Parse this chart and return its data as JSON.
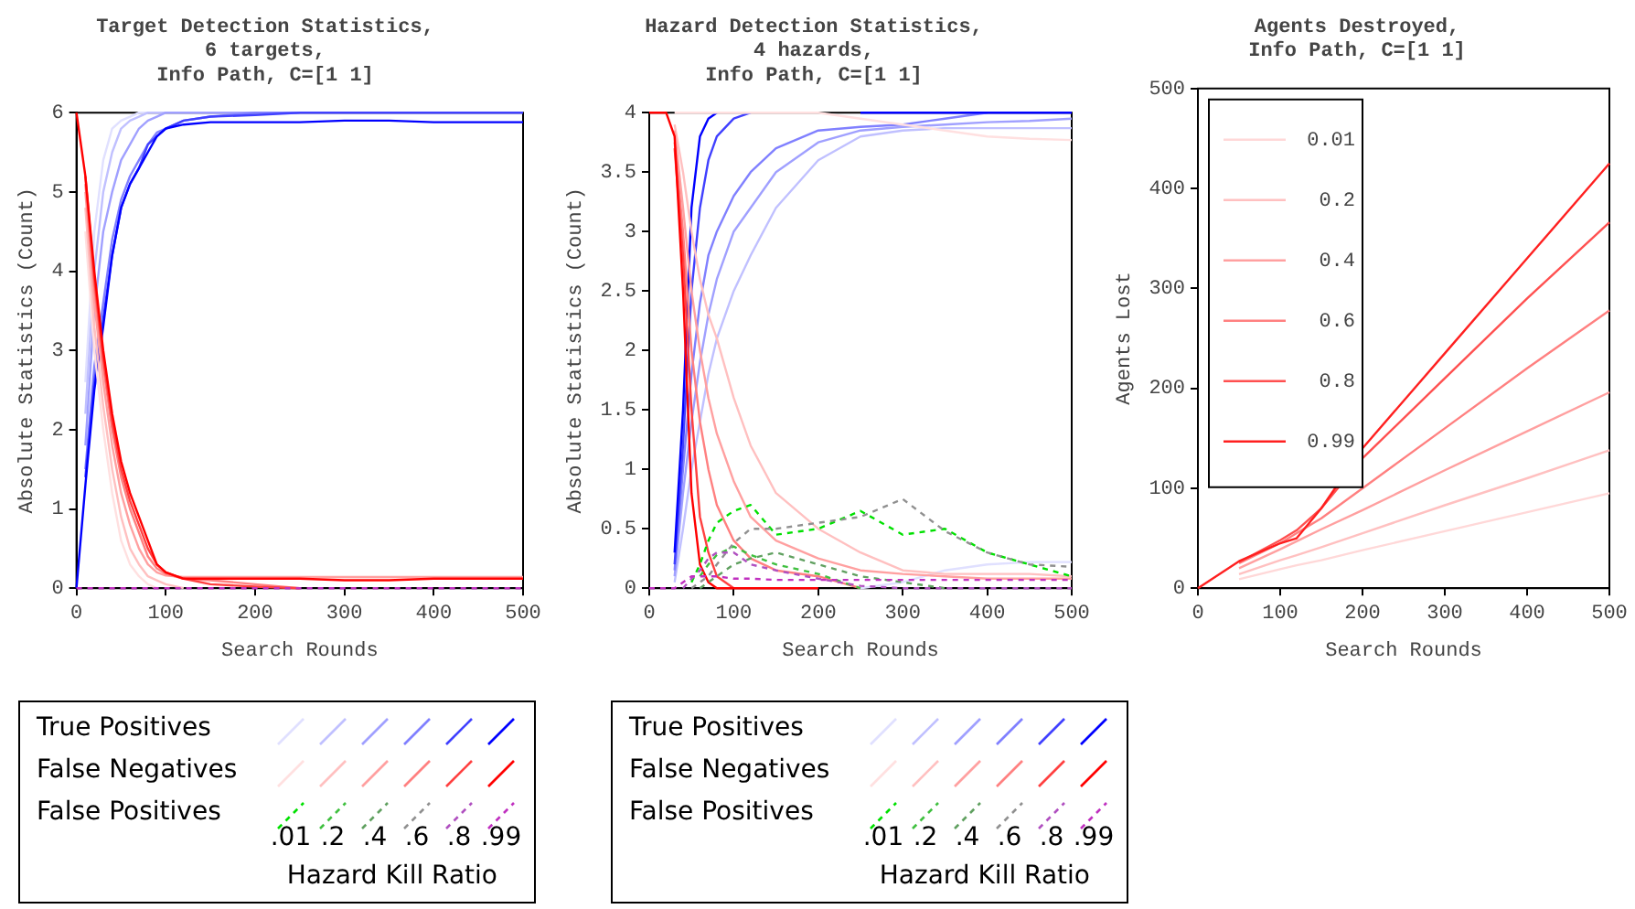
{
  "chart_data": [
    {
      "type": "line",
      "title": "Target Detection Statistics,\n6 targets,\nInfo Path, C=[1 1]",
      "xlabel": "Search Rounds",
      "ylabel": "Absolute Statistics (Count)",
      "xlim": [
        0,
        500
      ],
      "ylim": [
        0,
        6
      ],
      "xticks": [
        0,
        100,
        200,
        300,
        400,
        500
      ],
      "yticks": [
        0,
        1,
        2,
        3,
        4,
        5,
        6
      ],
      "grid": false,
      "marker": "none",
      "x": [
        0,
        10,
        20,
        30,
        40,
        50,
        60,
        70,
        80,
        90,
        100,
        120,
        150,
        200,
        250,
        300,
        350,
        400,
        450,
        500
      ],
      "series": [
        {
          "color": "#e0e0ff",
          "values": [
            null,
            2.6,
            4.5,
            5.4,
            5.8,
            5.9,
            5.95,
            6,
            6,
            null,
            null,
            null,
            null,
            null,
            null,
            null,
            null,
            null,
            null,
            null
          ]
        },
        {
          "color": "#c0c0ff",
          "values": [
            null,
            2.2,
            4,
            5,
            5.5,
            5.8,
            5.9,
            5.95,
            6,
            6,
            6,
            null,
            null,
            null,
            null,
            null,
            null,
            null,
            null,
            null
          ]
        },
        {
          "color": "#a0a0ff",
          "values": [
            null,
            1.8,
            3.5,
            4.5,
            5,
            5.4,
            5.6,
            5.8,
            5.9,
            5.95,
            6,
            6,
            6,
            6,
            null,
            null,
            null,
            null,
            null,
            null
          ]
        },
        {
          "color": "#8080ff",
          "values": [
            null,
            1.5,
            2.8,
            3.6,
            4.4,
            4.9,
            5.2,
            5.4,
            5.6,
            5.75,
            5.8,
            5.9,
            5.95,
            6,
            6,
            null,
            null,
            null,
            null,
            null
          ]
        },
        {
          "color": "#4040ff",
          "values": [
            null,
            1.4,
            2.6,
            3.4,
            4.2,
            4.8,
            5.1,
            5.3,
            5.6,
            5.7,
            5.8,
            5.9,
            5.95,
            5.97,
            6,
            6,
            6,
            6,
            6,
            6
          ]
        },
        {
          "color": "#0000ff",
          "values": [
            0,
            1.3,
            2.5,
            3.3,
            4.2,
            4.8,
            5.1,
            5.3,
            5.5,
            5.7,
            5.8,
            5.85,
            5.88,
            5.88,
            5.88,
            5.9,
            5.9,
            5.88,
            5.88,
            5.88
          ]
        },
        {
          "color": "#ffe0e0",
          "values": [
            null,
            4.5,
            3,
            2,
            1.2,
            0.6,
            0.3,
            0.15,
            0.05,
            0,
            null,
            null,
            null,
            null,
            null,
            null,
            null,
            null,
            null,
            null
          ]
        },
        {
          "color": "#ffc0c0",
          "values": [
            null,
            4.8,
            3.3,
            2.3,
            1.5,
            0.9,
            0.5,
            0.3,
            0.15,
            0.1,
            0.05,
            0,
            null,
            null,
            null,
            null,
            null,
            null,
            null,
            null
          ]
        },
        {
          "color": "#ffa0a0",
          "values": [
            null,
            5,
            3.6,
            2.6,
            1.8,
            1.2,
            0.8,
            0.5,
            0.3,
            0.2,
            0.16,
            0.14,
            0.14,
            0.14,
            0.14,
            0.14,
            0.14,
            0.14,
            0.14,
            0.14
          ]
        },
        {
          "color": "#ff8080",
          "values": [
            null,
            5.1,
            3.8,
            2.8,
            2,
            1.4,
            1,
            0.7,
            0.4,
            0.25,
            0.18,
            0.12,
            0.1,
            0.05,
            0,
            null,
            null,
            null,
            null,
            null
          ]
        },
        {
          "color": "#ff4040",
          "values": [
            null,
            5.2,
            3.9,
            2.9,
            2.1,
            1.5,
            1.1,
            0.8,
            0.5,
            0.3,
            0.2,
            0.12,
            0.05,
            0.02,
            0,
            null,
            null,
            null,
            null,
            null
          ]
        },
        {
          "color": "#ff0000",
          "values": [
            6,
            5.2,
            4,
            3,
            2.2,
            1.6,
            1.2,
            0.9,
            0.6,
            0.3,
            0.2,
            0.12,
            0.12,
            0.12,
            0.12,
            0.1,
            0.1,
            0.12,
            0.12,
            0.12
          ]
        },
        {
          "color": "#00e000",
          "line_style": "dashed",
          "values": [
            null,
            null,
            null,
            null,
            null,
            null,
            null,
            null,
            null,
            null,
            null,
            null,
            null,
            null,
            null,
            null,
            null,
            null,
            null,
            null
          ]
        },
        {
          "color": "#40c040",
          "line_style": "dashed",
          "values": [
            null,
            null,
            null,
            null,
            null,
            null,
            null,
            null,
            null,
            null,
            null,
            null,
            null,
            null,
            null,
            null,
            null,
            null,
            null,
            null
          ]
        },
        {
          "color": "#60a060",
          "line_style": "dashed",
          "values": [
            null,
            null,
            null,
            null,
            null,
            null,
            null,
            null,
            null,
            null,
            null,
            null,
            null,
            null,
            null,
            null,
            null,
            null,
            null,
            null
          ]
        },
        {
          "color": "#909090",
          "line_style": "dashed",
          "values": [
            null,
            null,
            null,
            null,
            null,
            null,
            null,
            null,
            null,
            null,
            null,
            null,
            null,
            null,
            null,
            null,
            null,
            null,
            null,
            null
          ]
        },
        {
          "color": "#b050c0",
          "line_style": "dashed",
          "values": [
            null,
            null,
            null,
            null,
            null,
            null,
            null,
            null,
            null,
            null,
            null,
            null,
            null,
            null,
            null,
            null,
            null,
            null,
            null,
            null
          ]
        },
        {
          "color": "#c030c0",
          "line_style": "dashed",
          "values": [
            0,
            0,
            0,
            0,
            0,
            0,
            0,
            0,
            0,
            0,
            0,
            0,
            0,
            0,
            0,
            0,
            0,
            0,
            0,
            0
          ]
        }
      ],
      "annotations": [
        "True Positives",
        "False Negatives",
        "False Positives",
        ".01",
        ".2",
        ".4",
        ".6",
        ".8",
        ".99",
        "Hazard Kill Ratio"
      ]
    },
    {
      "type": "line",
      "title": "Hazard Detection Statistics,\n4 hazards,\nInfo Path, C=[1 1]",
      "xlabel": "Search Rounds",
      "ylabel": "Absolute Statistics (Count)",
      "xlim": [
        0,
        500
      ],
      "ylim": [
        0,
        4
      ],
      "xticks": [
        0,
        100,
        200,
        300,
        400,
        500
      ],
      "yticks": [
        0,
        0.5,
        1,
        1.5,
        2,
        2.5,
        3,
        3.5,
        4
      ],
      "grid": false,
      "marker": "none",
      "x": [
        0,
        20,
        30,
        40,
        50,
        60,
        70,
        80,
        100,
        120,
        150,
        200,
        250,
        300,
        350,
        400,
        450,
        500
      ],
      "series": [
        {
          "color": "#e0e0ff",
          "values": [
            null,
            null,
            null,
            null,
            null,
            null,
            null,
            null,
            null,
            null,
            null,
            null,
            0,
            0.05,
            0.15,
            0.2,
            0.22,
            0.22
          ]
        },
        {
          "color": "#c0c0ff",
          "values": [
            null,
            null,
            0.05,
            0.5,
            1,
            1.4,
            1.8,
            2.1,
            2.5,
            2.8,
            3.2,
            3.6,
            3.8,
            3.85,
            3.87,
            3.87,
            3.87,
            3.87
          ]
        },
        {
          "color": "#a0a0ff",
          "values": [
            null,
            null,
            0.1,
            0.8,
            1.4,
            1.9,
            2.3,
            2.6,
            3,
            3.2,
            3.5,
            3.75,
            3.85,
            3.88,
            3.9,
            3.92,
            3.93,
            3.95
          ]
        },
        {
          "color": "#8080ff",
          "values": [
            null,
            null,
            0.15,
            1,
            1.8,
            2.4,
            2.8,
            3,
            3.3,
            3.5,
            3.7,
            3.85,
            3.88,
            3.9,
            3.95,
            4,
            null,
            null
          ]
        },
        {
          "color": "#4040ff",
          "values": [
            null,
            null,
            0.2,
            1.2,
            2.5,
            3.2,
            3.6,
            3.8,
            3.95,
            4,
            null,
            null,
            null,
            null,
            null,
            null,
            null,
            null
          ]
        },
        {
          "color": "#0000ff",
          "values": [
            null,
            null,
            0.3,
            1.5,
            3.2,
            3.8,
            3.95,
            4,
            null,
            null,
            null,
            null,
            4,
            4,
            4,
            4,
            4,
            4
          ]
        },
        {
          "color": "#ffe0e0",
          "values": [
            null,
            null,
            4,
            4,
            4,
            4,
            4,
            4,
            4,
            4,
            4,
            4,
            3.95,
            3.9,
            3.85,
            3.8,
            3.78,
            3.77
          ]
        },
        {
          "color": "#ffc0c0",
          "values": [
            null,
            null,
            3.9,
            3.5,
            3,
            2.6,
            2.3,
            2.1,
            1.6,
            1.2,
            0.8,
            0.5,
            0.3,
            0.15,
            0.12,
            0.12,
            0.12,
            0.1
          ]
        },
        {
          "color": "#ffa0a0",
          "values": [
            null,
            null,
            3.85,
            3.2,
            2.5,
            2,
            1.6,
            1.3,
            0.9,
            0.6,
            0.4,
            0.25,
            0.15,
            0.12,
            0.1,
            0.08,
            0.08,
            0.08
          ]
        },
        {
          "color": "#ff8080",
          "values": [
            null,
            null,
            3.75,
            3,
            2,
            1.4,
            1,
            0.7,
            0.4,
            0.25,
            0.15,
            0.1,
            0,
            null,
            null,
            null,
            null,
            null
          ]
        },
        {
          "color": "#ff4040",
          "values": [
            null,
            null,
            3.7,
            2.8,
            1.5,
            0.6,
            0.3,
            0.1,
            0,
            null,
            null,
            null,
            null,
            null,
            null,
            null,
            null,
            null
          ]
        },
        {
          "color": "#ff0000",
          "values": [
            4,
            4,
            3.8,
            2.5,
            0.8,
            0.2,
            0.05,
            0,
            0,
            0,
            0,
            0,
            null,
            null,
            null,
            null,
            null,
            null
          ]
        },
        {
          "color": "#00e000",
          "line_style": "dashed",
          "values": [
            null,
            null,
            null,
            null,
            0.05,
            0.2,
            0.4,
            0.55,
            0.65,
            0.7,
            0.45,
            0.5,
            0.65,
            0.45,
            0.5,
            0.3,
            0.2,
            0.1
          ]
        },
        {
          "color": "#40c040",
          "line_style": "dashed",
          "values": [
            null,
            null,
            null,
            null,
            null,
            0.1,
            0.2,
            0.28,
            0.35,
            0.28,
            0.2,
            0.12,
            0,
            null,
            null,
            null,
            null,
            null
          ]
        },
        {
          "color": "#60a060",
          "line_style": "dashed",
          "values": [
            null,
            null,
            null,
            null,
            null,
            0,
            0.05,
            0.1,
            0.2,
            0.25,
            0.3,
            0.2,
            0.1,
            0.05,
            0,
            null,
            null,
            null
          ]
        },
        {
          "color": "#909090",
          "line_style": "dashed",
          "values": [
            null,
            null,
            null,
            null,
            0,
            0.05,
            0.1,
            0.2,
            0.38,
            0.5,
            0.5,
            0.55,
            0.6,
            0.75,
            0.48,
            0.3,
            0.2,
            0.18
          ]
        },
        {
          "color": "#b050c0",
          "line_style": "dashed",
          "values": [
            null,
            null,
            null,
            0,
            0.08,
            0.15,
            0.25,
            0.3,
            0.3,
            0.2,
            0.15,
            0.08,
            0.02,
            0,
            0,
            0,
            0,
            0
          ]
        },
        {
          "color": "#c030c0",
          "line_style": "dashed",
          "values": [
            0,
            0,
            0,
            0.05,
            0.1,
            0.1,
            0.1,
            0.1,
            0.08,
            0.08,
            0.07,
            0.07,
            0.07,
            0.07,
            0.07,
            0.07,
            0.07,
            0.07
          ]
        }
      ],
      "annotations": [
        "True Positives",
        "False Negatives",
        "False Positives",
        ".01",
        ".2",
        ".4",
        ".6",
        ".8",
        ".99",
        "Hazard Kill Ratio"
      ]
    },
    {
      "type": "line",
      "title": "Agents Destroyed,\nInfo Path, C=[1 1]",
      "xlabel": "Search Rounds",
      "ylabel": "Agents Lost",
      "xlim": [
        0,
        500
      ],
      "ylim": [
        0,
        500
      ],
      "xticks": [
        0,
        100,
        200,
        300,
        400,
        500
      ],
      "yticks": [
        0,
        100,
        200,
        300,
        400,
        500
      ],
      "grid": false,
      "marker": "none",
      "legend": "top left",
      "x": [
        0,
        50,
        100,
        120,
        150,
        200,
        300,
        400,
        500
      ],
      "series": [
        {
          "name": "0.01",
          "color": "#ffd8d8",
          "values": [
            null,
            9,
            19,
            23,
            28,
            38,
            57,
            76,
            95
          ]
        },
        {
          "name": "0.2",
          "color": "#ffc0c0",
          "values": [
            null,
            14,
            28,
            33,
            41,
            55,
            83,
            110,
            138
          ]
        },
        {
          "name": "0.4",
          "color": "#ffa0a0",
          "values": [
            null,
            20,
            39,
            47,
            59,
            78,
            118,
            157,
            196
          ]
        },
        {
          "name": "0.6",
          "color": "#ff8080",
          "values": [
            null,
            25,
            45,
            55,
            70,
            100,
            160,
            220,
            278
          ]
        },
        {
          "name": "0.8",
          "color": "#ff5050",
          "values": [
            null,
            26,
            48,
            58,
            80,
            130,
            210,
            290,
            366
          ]
        },
        {
          "name": "0.99",
          "color": "#ff2020",
          "values": [
            0,
            27,
            45,
            50,
            80,
            140,
            235,
            330,
            425
          ]
        }
      ]
    }
  ]
}
